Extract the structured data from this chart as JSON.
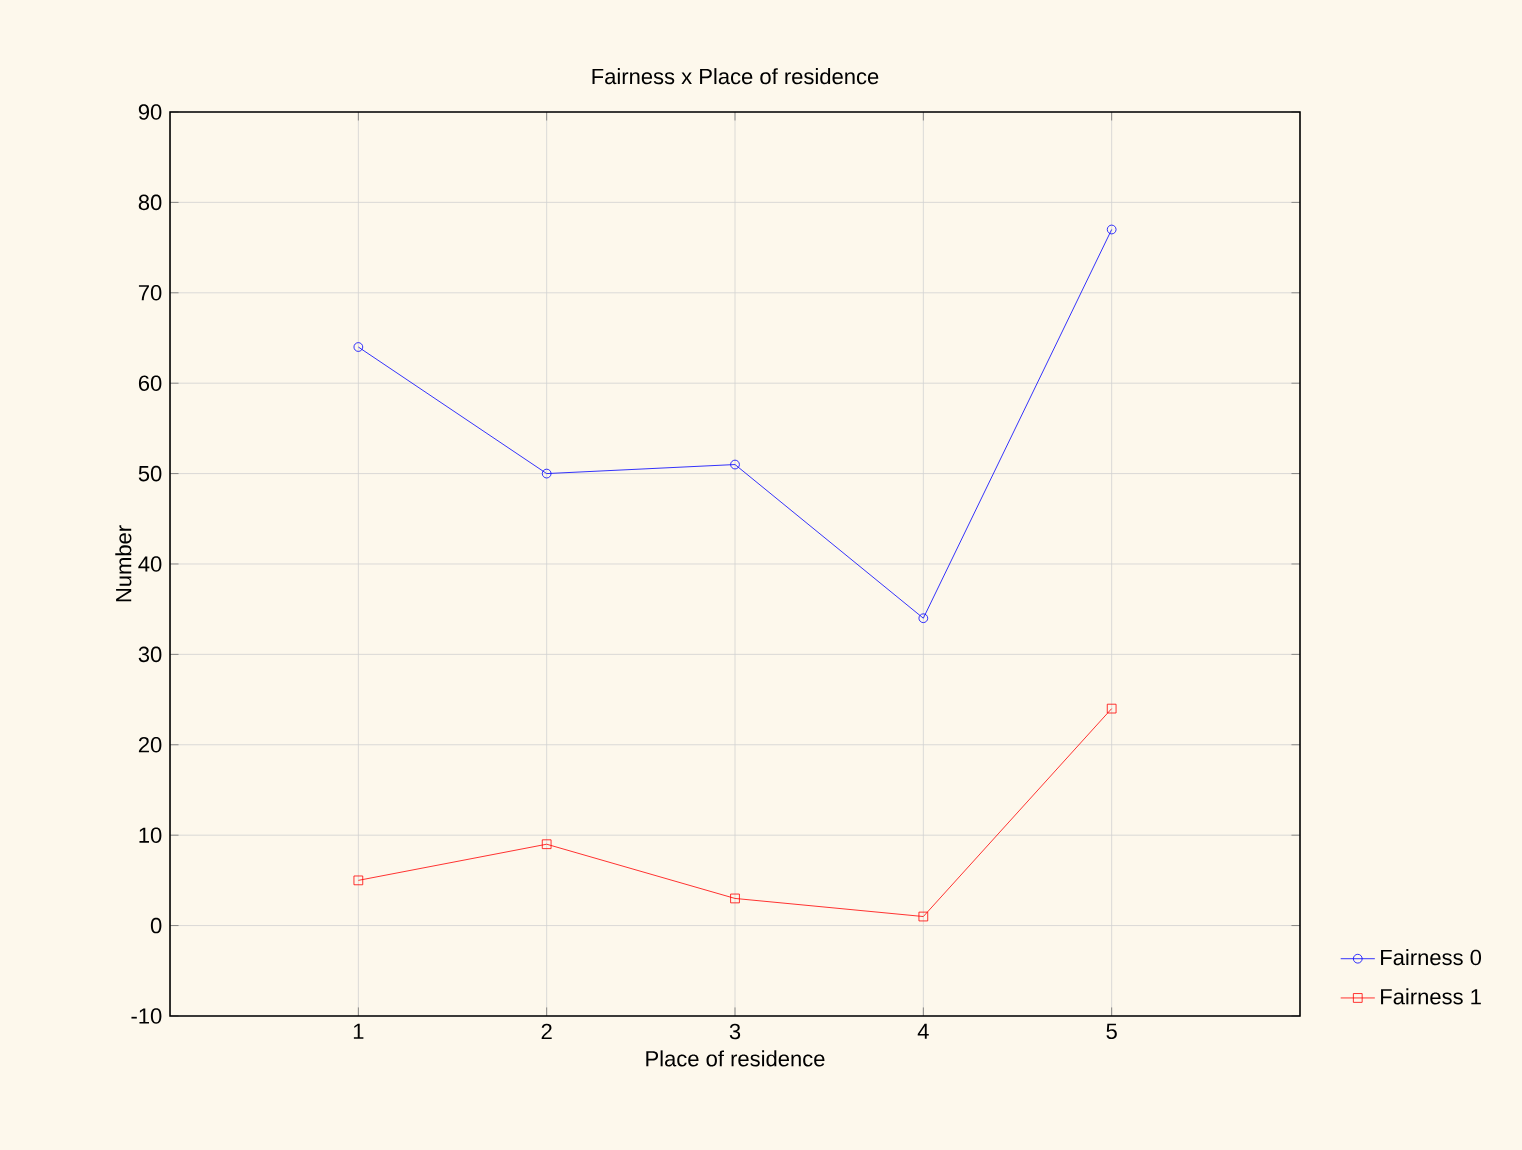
{
  "chart_data": {
    "type": "line",
    "title": "Fairness x Place of residence",
    "xlabel": "Place of residence",
    "ylabel": "Number",
    "x": [
      1,
      2,
      3,
      4,
      5
    ],
    "xlim": [
      0,
      6
    ],
    "xticks": [
      1,
      2,
      3,
      4,
      5
    ],
    "ylim": [
      -10,
      90
    ],
    "yticks": [
      -10,
      0,
      10,
      20,
      30,
      40,
      50,
      60,
      70,
      80,
      90
    ],
    "series": [
      {
        "name": "Fairness 0",
        "color": "#0000ff",
        "marker": "circle",
        "values": [
          64,
          50,
          51,
          34,
          77
        ]
      },
      {
        "name": "Fairness 1",
        "color": "#ff0000",
        "marker": "square",
        "values": [
          5,
          9,
          3,
          1,
          24
        ]
      }
    ],
    "grid": true,
    "legend": "bottom right",
    "line_style": "solid"
  }
}
